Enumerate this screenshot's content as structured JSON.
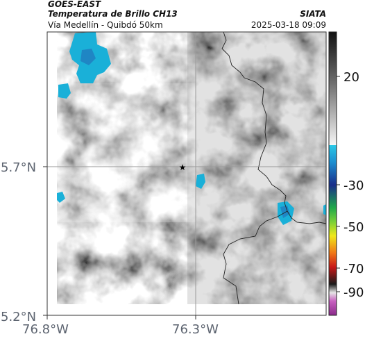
{
  "header": {
    "satellite": "GOES-EAST",
    "product": "Temperatura de Brillo CH13",
    "region": "Vía Medellín - Quibdó 50km",
    "org": "SIATA",
    "timestamp": "2025-03-18 09:09"
  },
  "map": {
    "lat_ticks": [
      "5.7°N",
      "5.2°N"
    ],
    "lon_ticks": [
      "76.8°W",
      "76.3°W"
    ],
    "marker_icon": "star-icon",
    "gridlines": true
  },
  "colorbar": {
    "labels": [
      "20",
      "-30",
      "-50",
      "-70",
      "-90"
    ],
    "colors": [
      "#1c1c1c",
      "#8a8a8a",
      "#f4f4f4",
      "#16b4dc",
      "#1a2e8a",
      "#1ea84a",
      "#f0e81a",
      "#f07818",
      "#c81818",
      "#1a1a1a",
      "#e6e6e6",
      "#b040a8"
    ]
  }
}
